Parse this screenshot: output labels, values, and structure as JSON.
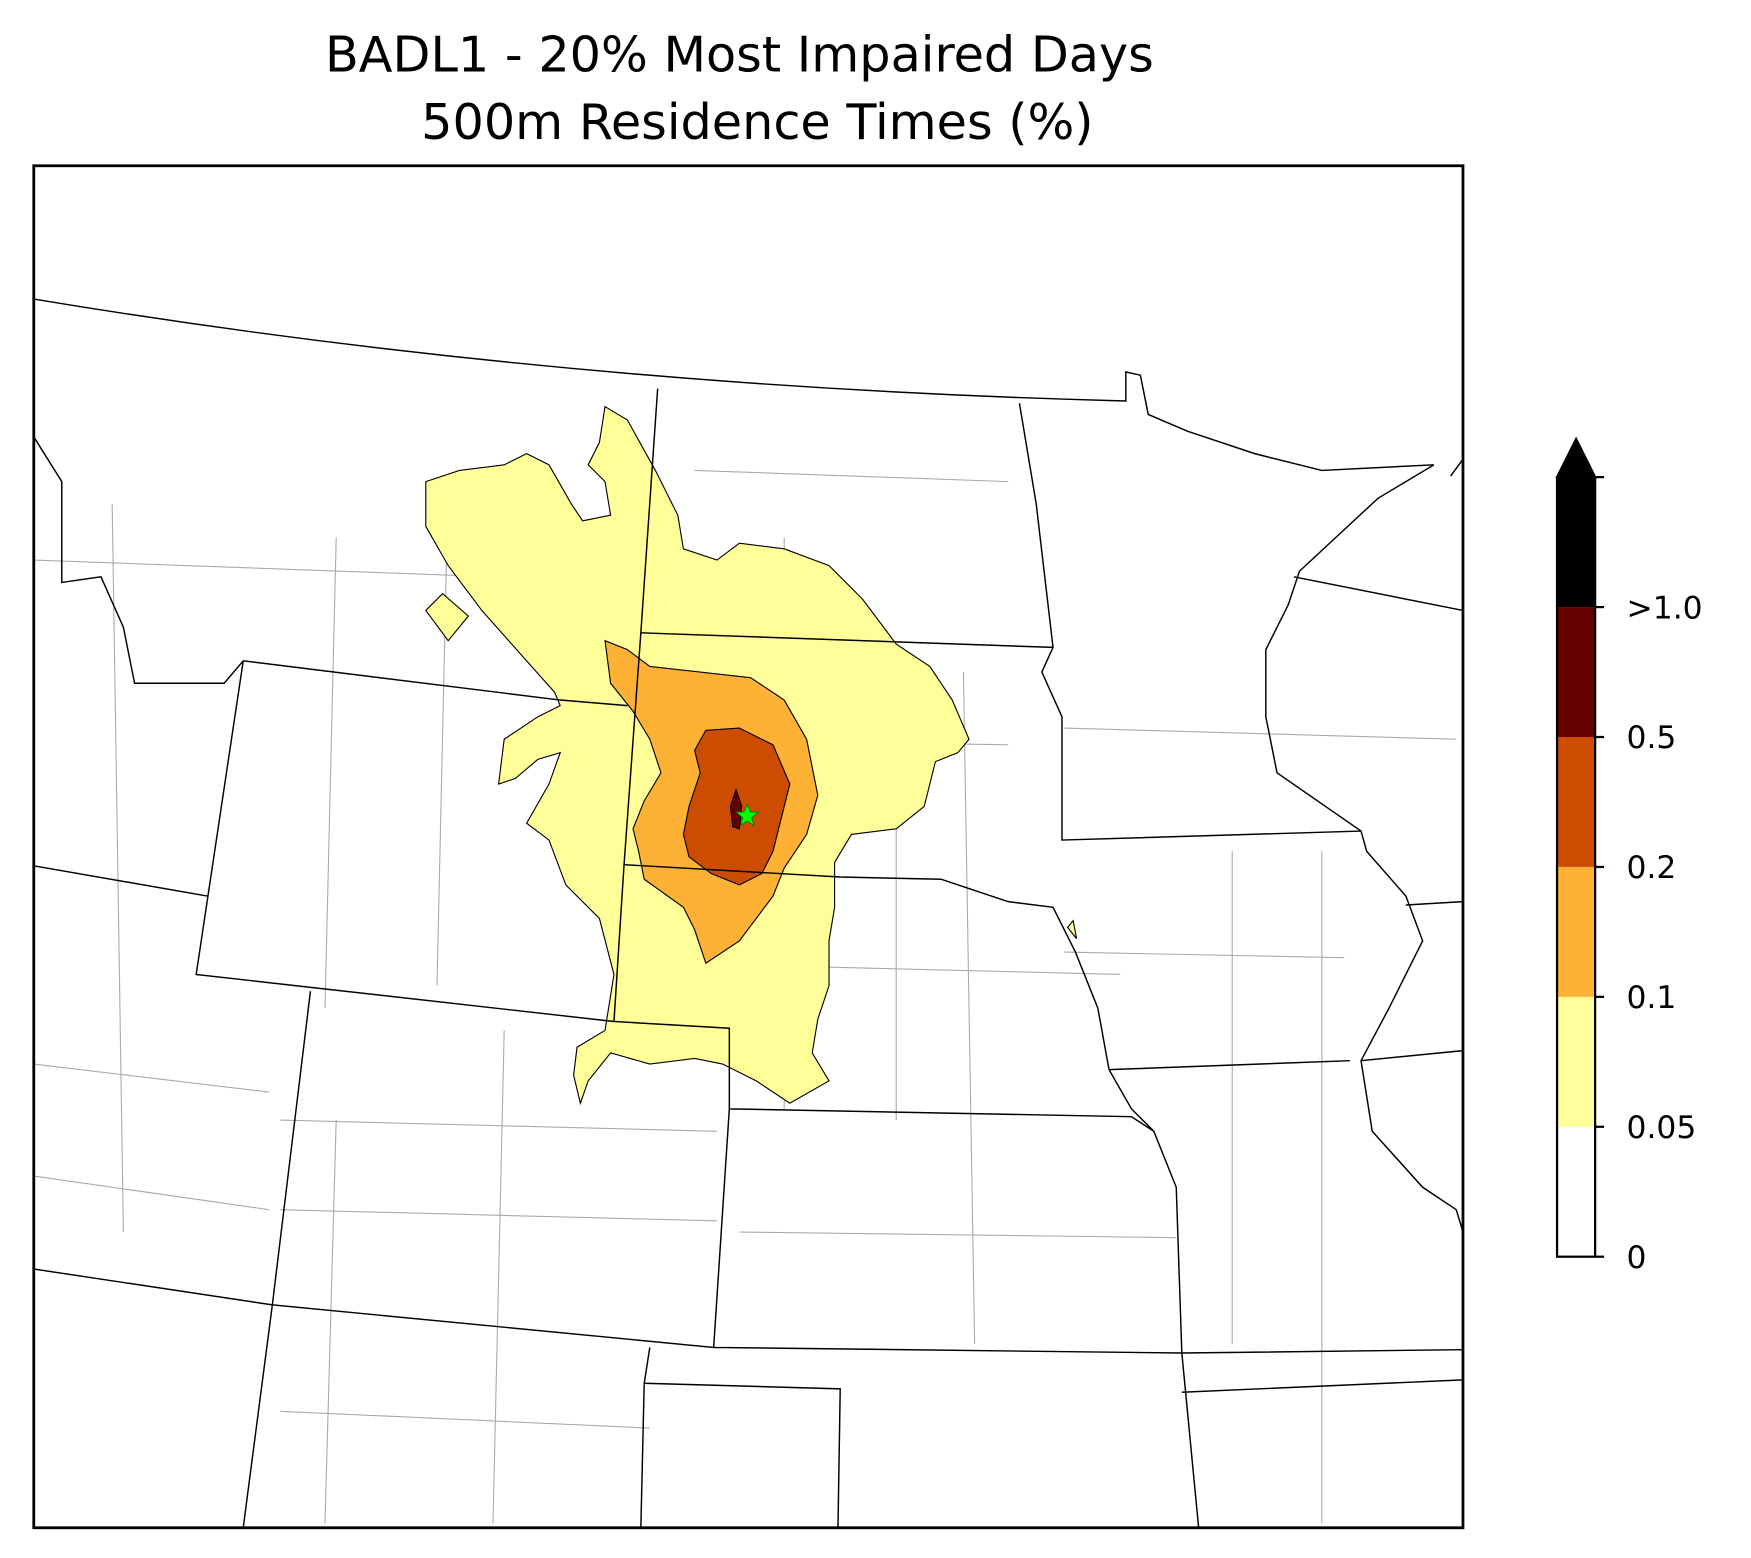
{
  "chart_data": {
    "type": "map",
    "title": "BADL1 - 20% Most Impaired Days",
    "subtitle": "500m Residence Times (%)",
    "colorbar": {
      "ticks": [
        0,
        0.05,
        0.1,
        0.2,
        0.5,
        {
          "value": 1.0,
          "label": ">1.0"
        }
      ],
      "colors": [
        "#ffffff",
        "#ffff99",
        "#fdb135",
        "#cc4c02",
        "#660000",
        "#000000"
      ],
      "extend": "max"
    }
  }
}
